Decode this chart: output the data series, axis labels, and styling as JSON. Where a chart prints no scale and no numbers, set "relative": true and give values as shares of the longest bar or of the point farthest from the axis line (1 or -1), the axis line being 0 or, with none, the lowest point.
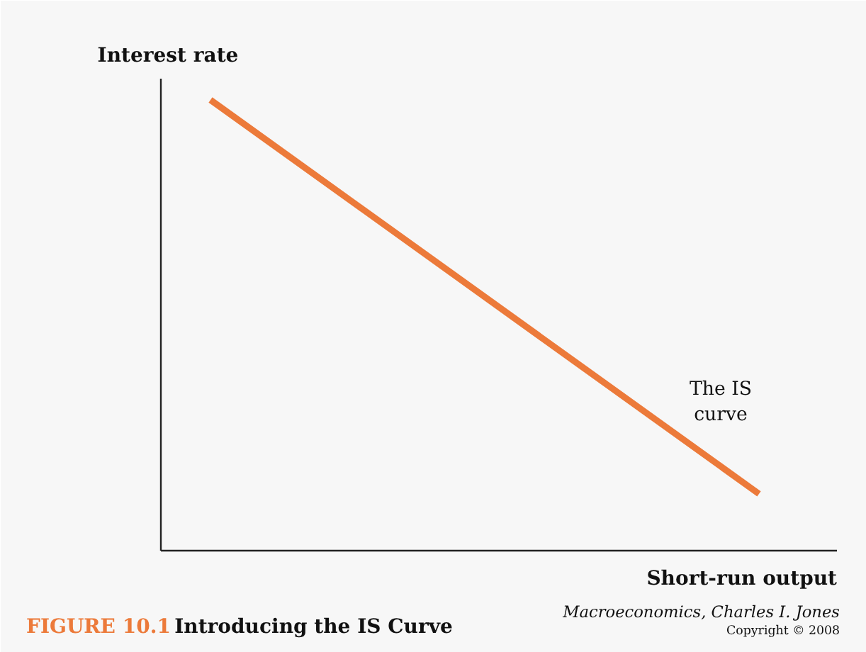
{
  "chart_data": {
    "type": "line",
    "relative": true,
    "title": "Introducing the IS Curve",
    "xlabel": "Short-run output",
    "ylabel": "Interest rate",
    "categories": [
      null,
      null
    ],
    "series": [
      {
        "color": "#ec7a3a",
        "values": [
          1,
          0.126
        ]
      }
    ],
    "annotations": [
      "FIGURE 10.1",
      "The IS\ncurve",
      "Macroeconomics, Charles I. Jones",
      "Copyright © 2008"
    ]
  }
}
